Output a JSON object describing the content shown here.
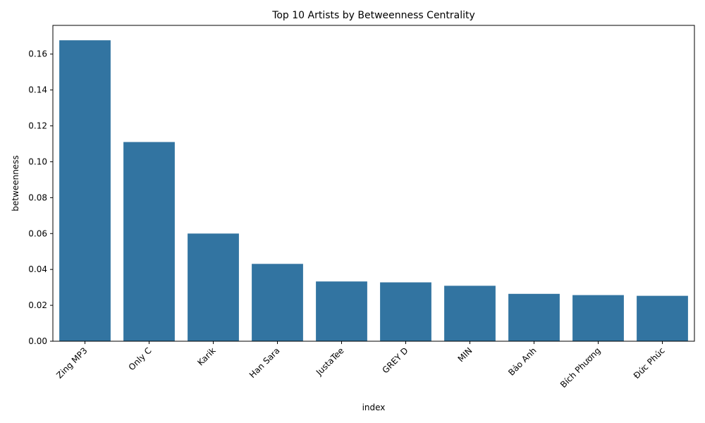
{
  "chart_data": {
    "type": "bar",
    "title": "Top 10 Artists by Betweenness Centrality",
    "xlabel": "index",
    "ylabel": "betweenness",
    "categories": [
      "Zing MP3",
      "Only C",
      "Karik",
      "Han Sara",
      "JustaTee",
      "GREY D",
      "MIN",
      "Bảo Anh",
      "Bích Phương",
      "Đức Phúc"
    ],
    "values": [
      0.1677,
      0.111,
      0.06,
      0.0431,
      0.0333,
      0.0328,
      0.0309,
      0.0264,
      0.0257,
      0.0253
    ],
    "yticks": [
      0.0,
      0.02,
      0.04,
      0.06,
      0.08,
      0.1,
      0.12,
      0.14,
      0.16
    ],
    "ytick_labels": [
      "0.00",
      "0.02",
      "0.04",
      "0.06",
      "0.08",
      "0.10",
      "0.12",
      "0.14",
      "0.16"
    ],
    "ylim": [
      0,
      0.176
    ],
    "grid": false,
    "bar_color": "#3274a1"
  }
}
